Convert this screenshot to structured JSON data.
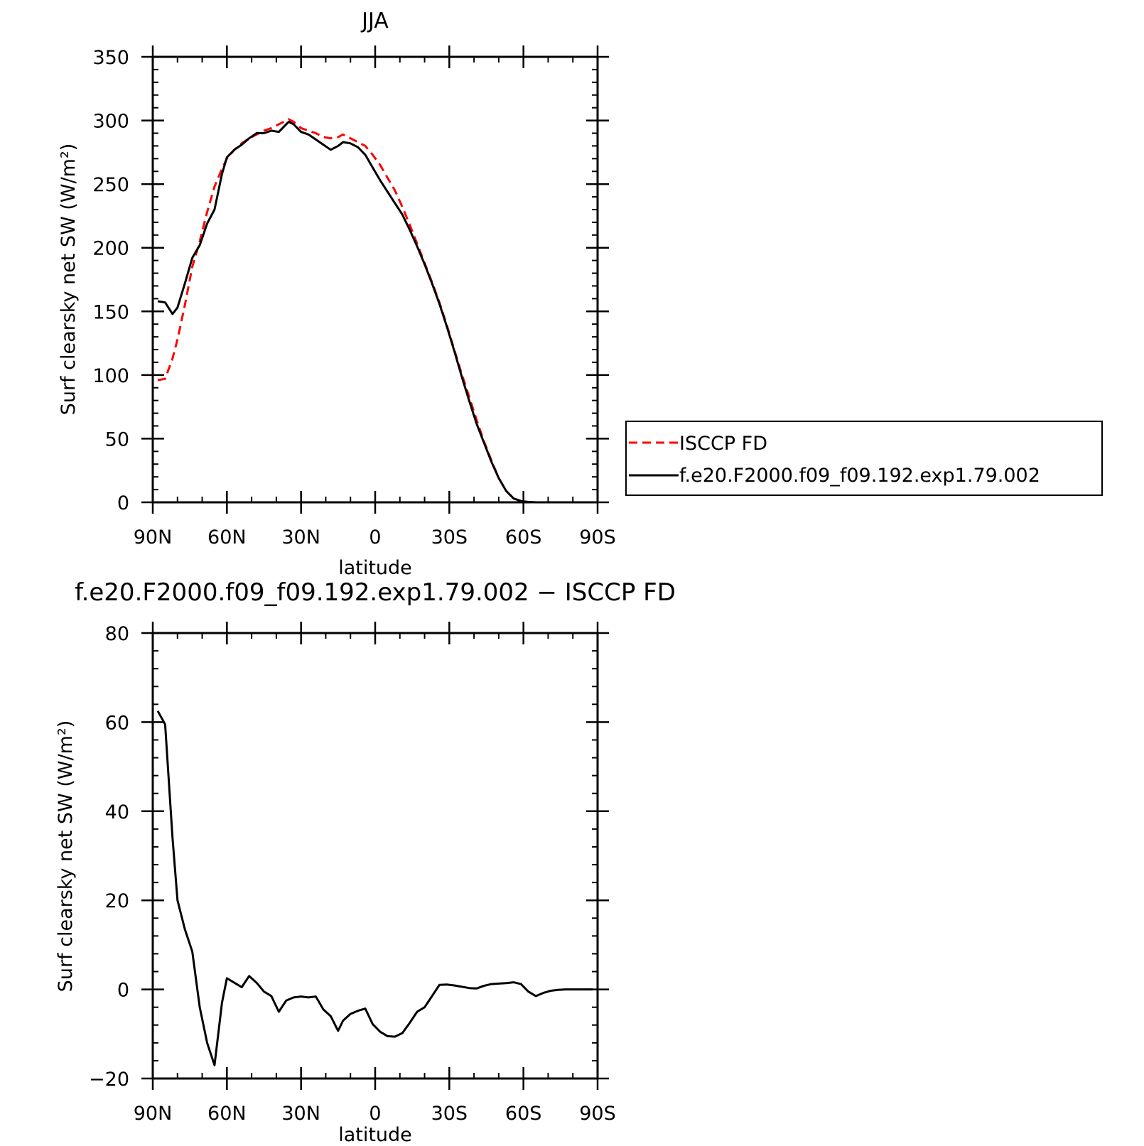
{
  "chart_data": [
    {
      "type": "line",
      "title": "JJA",
      "xlabel": "latitude",
      "ylabel": "Surf clearsky net SW (W/m²)",
      "xlim": [
        90,
        -90
      ],
      "ylim": [
        0,
        350
      ],
      "xticks": [
        90,
        60,
        30,
        0,
        -30,
        -60,
        -90
      ],
      "xtick_labels": [
        "90N",
        "60N",
        "30N",
        "0",
        "30S",
        "60S",
        "90S"
      ],
      "yticks": [
        0,
        50,
        100,
        150,
        200,
        250,
        300,
        350
      ],
      "ytick_labels": [
        "0",
        "50",
        "100",
        "150",
        "200",
        "250",
        "300",
        "350"
      ],
      "grid": false,
      "legend_position": "right",
      "series": [
        {
          "name": "ISCCP FD",
          "color": "#ff0000",
          "dash": "dashed",
          "x": [
            88,
            85,
            82,
            80,
            77,
            74,
            71,
            68,
            65,
            62,
            60,
            57,
            54,
            51,
            48,
            45,
            42,
            39,
            36,
            35,
            33,
            30,
            27,
            24,
            21,
            18,
            15,
            13,
            10,
            7,
            4,
            1,
            -2,
            -5,
            -8,
            -11,
            -14,
            -17,
            -20,
            -23,
            -26,
            -29,
            -32,
            -35,
            -38,
            -41,
            -44,
            -47,
            -50,
            -53,
            -56,
            -59,
            -62,
            -65,
            -68,
            -71,
            -74,
            -77,
            -80,
            -83,
            -86,
            -88
          ],
          "y": [
            96,
            97,
            113,
            128,
            155,
            185,
            205,
            228,
            248,
            262,
            270,
            277,
            282,
            286,
            289,
            292,
            294,
            297,
            300,
            301,
            299,
            294,
            292,
            290,
            287,
            286,
            287,
            289,
            286,
            283,
            280,
            273,
            265,
            255,
            245,
            232,
            218,
            203,
            188,
            173,
            157,
            139,
            120,
            101,
            83,
            65,
            48,
            33,
            19,
            9,
            3,
            1,
            0.3,
            0,
            0,
            0,
            0,
            0,
            0,
            0,
            0,
            0
          ]
        },
        {
          "name": "f.e20.F2000.f09_f09.192.exp1.79.002",
          "color": "#000000",
          "dash": "solid",
          "x": [
            88,
            85,
            82,
            80,
            77,
            74,
            71,
            68,
            65,
            62,
            60,
            57,
            54,
            51,
            48,
            45,
            42,
            39,
            36,
            35,
            33,
            30,
            27,
            24,
            21,
            18,
            15,
            13,
            10,
            7,
            4,
            1,
            -2,
            -5,
            -8,
            -11,
            -14,
            -17,
            -20,
            -23,
            -26,
            -29,
            -32,
            -35,
            -38,
            -41,
            -44,
            -47,
            -50,
            -53,
            -56,
            -59,
            -62,
            -65,
            -68,
            -71,
            -74,
            -77,
            -80,
            -83,
            -86,
            -88
          ],
          "y": [
            158,
            157,
            148,
            153,
            172,
            192,
            202,
            219,
            230,
            258,
            271,
            277,
            281,
            286,
            290,
            290,
            292,
            291,
            297,
            299,
            297,
            291,
            289,
            285,
            281,
            277,
            280,
            283,
            282,
            279,
            273,
            263,
            253,
            244,
            235,
            226,
            214,
            201,
            187,
            172,
            156,
            138,
            119,
            99,
            80,
            62,
            47,
            32,
            19,
            9,
            3,
            1,
            0.3,
            0,
            0,
            0,
            0,
            0,
            0,
            0,
            0,
            0
          ]
        }
      ]
    },
    {
      "type": "line",
      "title": "f.e20.F2000.f09_f09.192.exp1.79.002 − ISCCP FD",
      "xlabel": "latitude",
      "ylabel": "Surf clearsky net SW (W/m²)",
      "xlim": [
        90,
        -90
      ],
      "ylim": [
        -20,
        80
      ],
      "xticks": [
        90,
        60,
        30,
        0,
        -30,
        -60,
        -90
      ],
      "xtick_labels": [
        "90N",
        "60N",
        "30N",
        "0",
        "30S",
        "60S",
        "90S"
      ],
      "yticks": [
        -20,
        0,
        20,
        40,
        60,
        80
      ],
      "ytick_labels": [
        "−20",
        "0",
        "20",
        "40",
        "60",
        "80"
      ],
      "grid": false,
      "series": [
        {
          "color": "#000000",
          "dash": "solid",
          "x": [
            88,
            85,
            82,
            80,
            77,
            74,
            71,
            68,
            65,
            62,
            60,
            57,
            54,
            51,
            48,
            45,
            42,
            39,
            36,
            33,
            30,
            27,
            24,
            21,
            18,
            15,
            13,
            10,
            7,
            4,
            1,
            -2,
            -5,
            -8,
            -11,
            -14,
            -17,
            -20,
            -23,
            -26,
            -29,
            -32,
            -35,
            -38,
            -41,
            -44,
            -47,
            -50,
            -53,
            -56,
            -59,
            -62,
            -65,
            -68,
            -71,
            -74,
            -77,
            -80,
            -83,
            -86,
            -88
          ],
          "y": [
            62.5,
            59.5,
            34,
            20,
            13.5,
            8.5,
            -4,
            -12,
            -17,
            -3,
            2.5,
            1.5,
            0.5,
            3,
            1.5,
            -0.5,
            -1.5,
            -5,
            -2.5,
            -1.8,
            -1.6,
            -1.8,
            -1.6,
            -4.5,
            -6,
            -9.3,
            -7,
            -5.5,
            -4.8,
            -4.3,
            -7.8,
            -9.5,
            -10.5,
            -10.6,
            -9.8,
            -7.5,
            -5,
            -4,
            -1.5,
            1,
            1.1,
            0.9,
            0.6,
            0.3,
            0.2,
            0.8,
            1.2,
            1.3,
            1.4,
            1.6,
            1.2,
            -0.5,
            -1.5,
            -0.8,
            -0.3,
            -0.1,
            0,
            0,
            0,
            0,
            0
          ]
        }
      ]
    }
  ]
}
